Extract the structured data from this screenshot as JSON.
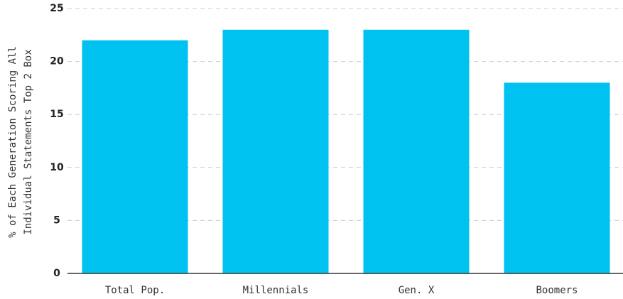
{
  "chart_data": {
    "type": "bar",
    "ylabel": [
      "% of Each Generation Scoring All",
      "Individual Statements Top 2 Box"
    ],
    "categories": [
      "Total Pop.",
      "Millennials",
      "Gen. X",
      "Boomers"
    ],
    "values": [
      22,
      23,
      23,
      18
    ],
    "color": "#00c2f0",
    "ylim": [
      0,
      25
    ],
    "yticks": [
      0,
      5,
      10,
      15,
      20,
      25
    ],
    "grid": true
  }
}
